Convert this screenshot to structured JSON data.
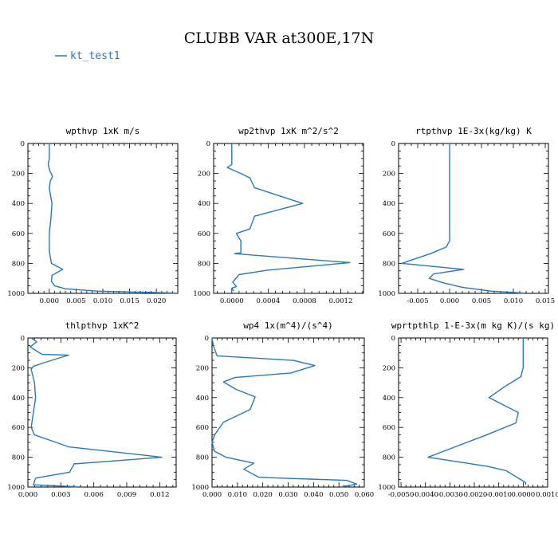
{
  "figure": {
    "title": "CLUBB VAR at300E,17N",
    "legend": [
      {
        "label": "kt_test1",
        "color": "#2a78b8"
      }
    ]
  },
  "chart_data": [
    {
      "type": "line",
      "title": "wpthvp   1xK m/s",
      "xlim": [
        -0.004,
        0.024
      ],
      "ylim": [
        1000,
        0
      ],
      "xticks": [
        0.0,
        0.005,
        0.01,
        0.015,
        0.02
      ],
      "xtick_labels": [
        "0.000",
        "0.005",
        "0.010",
        "0.015",
        "0.020"
      ],
      "yticks": [
        0,
        200,
        400,
        600,
        800,
        1000
      ],
      "ytick_labels": [
        "0",
        "200",
        "400",
        "600",
        "800",
        "1000"
      ],
      "grid": false,
      "series": [
        {
          "name": "kt_test1",
          "color": "#2a78b8",
          "x": [
            0.0,
            0.0,
            -0.0002,
            0.0,
            0.0002,
            0.0006,
            0.0002,
            0.0,
            0.0005,
            0.0003,
            0.0,
            0.0,
            0.0004,
            0.0025,
            0.0005,
            0.0004,
            0.001,
            0.003,
            0.009,
            0.018,
            0.0235
          ],
          "y": [
            0,
            100,
            140,
            170,
            190,
            220,
            250,
            300,
            400,
            500,
            600,
            720,
            800,
            840,
            880,
            920,
            950,
            970,
            985,
            993,
            998
          ]
        }
      ]
    },
    {
      "type": "line",
      "title": "wp2thvp   1xK m^2/s^2",
      "xlim": [
        -0.0002,
        0.00145
      ],
      "ylim": [
        1000,
        0
      ],
      "xticks": [
        0.0,
        0.0004,
        0.0008,
        0.0012
      ],
      "xtick_labels": [
        "0.0000",
        "0.0004",
        "0.0008",
        "0.0012"
      ],
      "yticks": [
        0,
        200,
        400,
        600,
        800,
        1000
      ],
      "ytick_labels": [
        "0",
        "200",
        "400",
        "600",
        "800",
        "1000"
      ],
      "grid": false,
      "series": [
        {
          "name": "kt_test1",
          "color": "#2a78b8",
          "x": [
            0.0,
            0.0,
            0.0,
            -5e-05,
            0.0001,
            0.0002,
            0.00025,
            0.00078,
            0.00025,
            0.0002,
            5e-05,
            0.0001,
            0.0001,
            3e-05,
            0.0013,
            0.0004,
            8e-05,
            1e-05,
            5e-05,
            0.0,
            2e-05
          ],
          "y": [
            0,
            80,
            140,
            160,
            200,
            230,
            295,
            400,
            485,
            570,
            600,
            650,
            730,
            735,
            795,
            845,
            875,
            925,
            955,
            965,
            985
          ]
        }
      ]
    },
    {
      "type": "line",
      "title": "rtpthvp   1E-3x(kg/kg) K",
      "xlim": [
        -0.008,
        0.0155
      ],
      "ylim": [
        1000,
        0
      ],
      "xticks": [
        -0.005,
        0.0,
        0.005,
        0.01,
        0.015
      ],
      "xtick_labels": [
        "-0.005",
        "0.000",
        "0.005",
        "0.010",
        "0.015"
      ],
      "yticks": [
        0,
        200,
        400,
        600,
        800,
        1000
      ],
      "ytick_labels": [
        "0",
        "200",
        "400",
        "600",
        "800",
        "1000"
      ],
      "grid": false,
      "series": [
        {
          "name": "kt_test1",
          "color": "#2a78b8",
          "x": [
            0.0,
            0.0,
            0.0,
            -0.0005,
            -0.003,
            -0.0075,
            0.0022,
            -0.0025,
            -0.0032,
            -0.001,
            0.002,
            0.0065,
            0.0115
          ],
          "y": [
            0,
            300,
            650,
            690,
            735,
            800,
            840,
            870,
            900,
            930,
            960,
            985,
            998
          ]
        }
      ]
    },
    {
      "type": "line",
      "title": "thlpthvp   1xK^2",
      "xlim": [
        0.0,
        0.0135
      ],
      "ylim": [
        1000,
        0
      ],
      "xticks": [
        0.0,
        0.003,
        0.006,
        0.009,
        0.012
      ],
      "xtick_labels": [
        "0.000",
        "0.003",
        "0.006",
        "0.009",
        "0.012"
      ],
      "yticks": [
        0,
        200,
        400,
        600,
        800,
        1000
      ],
      "ytick_labels": [
        "0",
        "200",
        "400",
        "600",
        "800",
        "1000"
      ],
      "grid": false,
      "series": [
        {
          "name": "kt_test1",
          "color": "#2a78b8",
          "x": [
            0.0003,
            0.0008,
            0.0002,
            0.0013,
            0.0037,
            0.0015,
            0.0005,
            0.0003,
            0.0006,
            0.0007,
            0.0005,
            0.0003,
            0.0006,
            0.0037,
            0.0122,
            0.0042,
            0.0041,
            0.0038,
            0.0007,
            0.0005,
            0.002,
            0.0045
          ],
          "y": [
            0,
            25,
            60,
            110,
            115,
            165,
            190,
            210,
            300,
            400,
            500,
            600,
            650,
            730,
            800,
            845,
            860,
            900,
            940,
            985,
            990,
            998
          ]
        }
      ]
    },
    {
      "type": "line",
      "title": "wp4   1x(m^4)/(s^4)",
      "xlim": [
        0.0,
        0.06
      ],
      "ylim": [
        1000,
        0
      ],
      "xticks": [
        0.0,
        0.01,
        0.02,
        0.03,
        0.04,
        0.05,
        0.06
      ],
      "xtick_labels": [
        "0.000",
        "0.010",
        "0.020",
        "0.030",
        "0.040",
        "0.050",
        "0.060"
      ],
      "yticks": [
        0,
        200,
        400,
        600,
        800,
        1000
      ],
      "ytick_labels": [
        "0",
        "200",
        "400",
        "600",
        "800",
        "1000"
      ],
      "grid": false,
      "series": [
        {
          "name": "kt_test1",
          "color": "#2a78b8",
          "x": [
            0.0,
            0.0005,
            0.002,
            0.032,
            0.0405,
            0.031,
            0.009,
            0.0045,
            0.0095,
            0.017,
            0.015,
            0.0045,
            0.001,
            0.0,
            0.001,
            0.0055,
            0.0165,
            0.0125,
            0.0185,
            0.053,
            0.057,
            0.051
          ],
          "y": [
            0,
            50,
            120,
            150,
            185,
            235,
            265,
            295,
            345,
            395,
            480,
            565,
            650,
            700,
            760,
            800,
            840,
            880,
            935,
            955,
            980,
            998
          ]
        }
      ]
    },
    {
      "type": "line",
      "title": "wprtpthlp   1-E-3x(m kg K)/(s kg)",
      "xlim": [
        -0.0051,
        0.001
      ],
      "ylim": [
        1000,
        0
      ],
      "xticks": [
        -0.005,
        -0.004,
        -0.003,
        -0.002,
        -0.001,
        0.0,
        0.001
      ],
      "xtick_labels": [
        "-0.0050",
        "-0.0040",
        "-0.0030",
        "-0.0020",
        "-0.0010",
        "0.0000",
        "0.0010"
      ],
      "yticks": [
        0,
        200,
        400,
        600,
        800,
        1000
      ],
      "ytick_labels": [
        "0",
        "200",
        "400",
        "600",
        "800",
        "1000"
      ],
      "grid": false,
      "series": [
        {
          "name": "kt_test1",
          "color": "#2a78b8",
          "x": [
            0.0,
            0.0,
            -0.0001,
            -0.0007,
            -0.0014,
            -0.0002,
            -0.0003,
            -0.0015,
            -0.0039,
            -0.0015,
            -0.0007,
            -0.0004,
            -0.0001,
            0.0001,
            0.0001
          ],
          "y": [
            0,
            200,
            260,
            320,
            400,
            500,
            570,
            650,
            800,
            860,
            890,
            920,
            950,
            970,
            985
          ]
        }
      ]
    }
  ]
}
